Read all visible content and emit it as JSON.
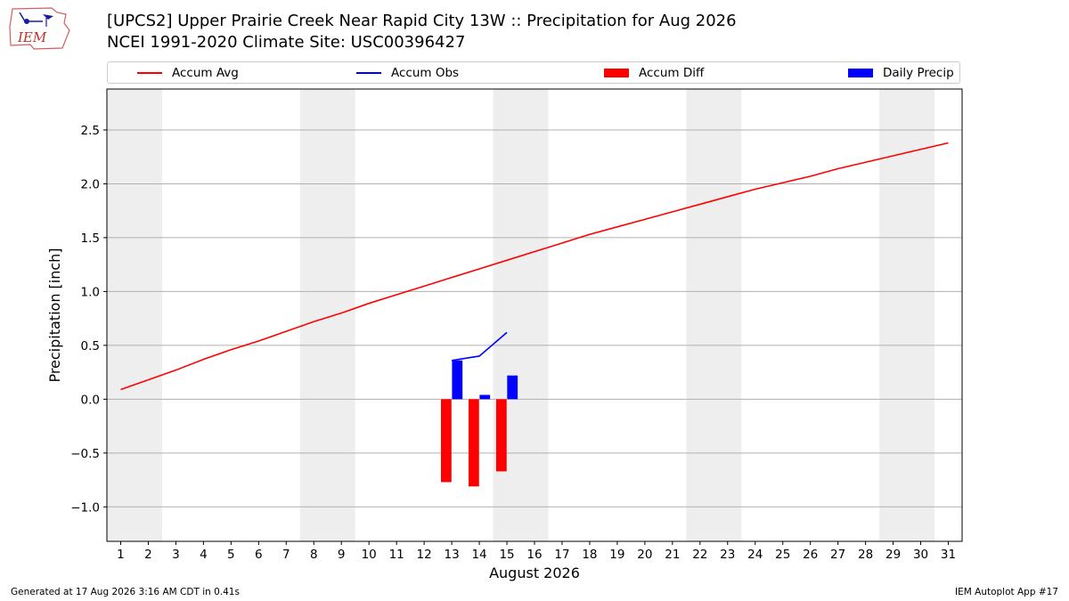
{
  "header": {
    "title_line1": "[UPCS2] Upper Prairie Creek Near Rapid City 13W :: Precipitation for Aug 2026",
    "title_line2": "NCEI 1991-2020 Climate Site: USC00396427",
    "logo_text": "IEM"
  },
  "footer": {
    "left": "Generated at 17 Aug 2026 3:16 AM CDT in 0.41s",
    "right": "IEM Autoplot App #17"
  },
  "legend": {
    "items": [
      {
        "label": "Accum Avg",
        "kind": "line",
        "color": "#ff0000"
      },
      {
        "label": "Accum Obs",
        "kind": "line",
        "color": "#0000ff"
      },
      {
        "label": "Accum Diff",
        "kind": "box",
        "color": "#ff0000"
      },
      {
        "label": "Daily Precip",
        "kind": "box",
        "color": "#0000ff"
      }
    ]
  },
  "chart_data": {
    "type": "bar",
    "xlabel": "August 2026",
    "ylabel": "Precipitation [inch]",
    "xlim": [
      0.5,
      31.5
    ],
    "ylim": [
      -1.32,
      2.88
    ],
    "yticks": [
      -1.0,
      -0.5,
      0.0,
      0.5,
      1.0,
      1.5,
      2.0,
      2.5
    ],
    "ytick_labels": [
      "−1.0",
      "−0.5",
      "0.0",
      "0.5",
      "1.0",
      "1.5",
      "2.0",
      "2.5"
    ],
    "days": [
      1,
      2,
      3,
      4,
      5,
      6,
      7,
      8,
      9,
      10,
      11,
      12,
      13,
      14,
      15,
      16,
      17,
      18,
      19,
      20,
      21,
      22,
      23,
      24,
      25,
      26,
      27,
      28,
      29,
      30,
      31
    ],
    "weekend_bands": [
      [
        1,
        2
      ],
      [
        8,
        9
      ],
      [
        15,
        16
      ],
      [
        22,
        23
      ],
      [
        29,
        30
      ]
    ],
    "grid": "horizontal",
    "series": [
      {
        "name": "Accum Avg",
        "kind": "line",
        "color": "#ff0000",
        "x": [
          1,
          2,
          3,
          4,
          5,
          6,
          7,
          8,
          9,
          10,
          11,
          12,
          13,
          14,
          15,
          16,
          17,
          18,
          19,
          20,
          21,
          22,
          23,
          24,
          25,
          26,
          27,
          28,
          29,
          30,
          31
        ],
        "values": [
          0.09,
          0.18,
          0.27,
          0.37,
          0.46,
          0.54,
          0.63,
          0.72,
          0.8,
          0.89,
          0.97,
          1.05,
          1.13,
          1.21,
          1.29,
          1.37,
          1.45,
          1.53,
          1.6,
          1.67,
          1.74,
          1.81,
          1.88,
          1.95,
          2.01,
          2.07,
          2.14,
          2.2,
          2.26,
          2.32,
          2.38
        ]
      },
      {
        "name": "Accum Obs",
        "kind": "line",
        "color": "#0000ff",
        "x": [
          13,
          14,
          15
        ],
        "values": [
          0.36,
          0.4,
          0.62
        ]
      },
      {
        "name": "Accum Diff",
        "kind": "bar",
        "color": "#ff0000",
        "offset": -0.2,
        "x": [
          13,
          14,
          15
        ],
        "values": [
          -0.77,
          -0.81,
          -0.67
        ]
      },
      {
        "name": "Daily Precip",
        "kind": "bar",
        "color": "#0000ff",
        "offset": 0.2,
        "x": [
          13,
          14,
          15
        ],
        "values": [
          0.36,
          0.04,
          0.22
        ]
      }
    ]
  }
}
